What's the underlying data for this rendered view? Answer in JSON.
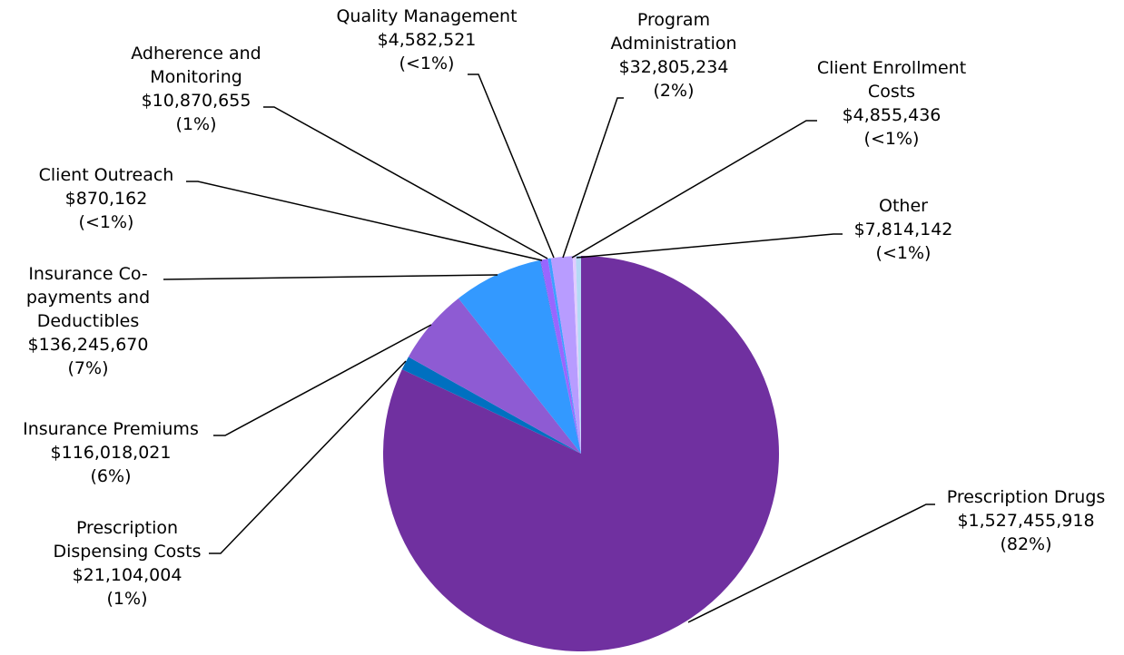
{
  "chart_data": {
    "type": "pie",
    "categories": [
      "Prescription Drugs",
      "Prescription Dispensing Costs",
      "Insurance Premiums",
      "Insurance Co-payments and Deductibles",
      "Client Outreach",
      "Adherence and Monitoring",
      "Quality Management",
      "Program Administration",
      "Client Enrollment Costs",
      "Other"
    ],
    "values": [
      1527455918,
      21104004,
      116018021,
      136245670,
      870162,
      10870655,
      4582521,
      32805234,
      4855436,
      7814142
    ],
    "value_labels": [
      "$1,527,455,918",
      "$21,104,004",
      "$116,018,021",
      "$136,245,670",
      "$870,162",
      "$10,870,655",
      "$4,582,521",
      "$32,805,234",
      "$4,855,436",
      "$7,814,142"
    ],
    "share_labels": [
      "(82%)",
      "(1%)",
      "(6%)",
      "(7%)",
      "(<1%)",
      "(1%)",
      "(<1%)",
      "(2%)",
      "(<1%)",
      "(<1%)"
    ],
    "colors": [
      "#7030a0",
      "#0070c0",
      "#8e5bd3",
      "#3399ff",
      "#6b4fd8",
      "#9966ff",
      "#3fa0ff",
      "#b89cff",
      "#e2ccff",
      "#b4d9f5"
    ]
  }
}
